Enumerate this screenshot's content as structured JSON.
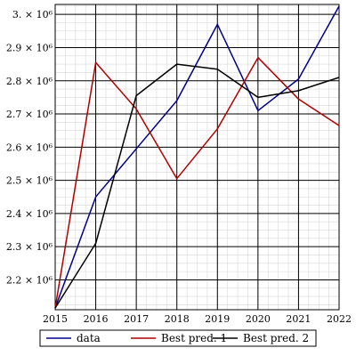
{
  "chart_data": {
    "type": "line",
    "x": [
      2015,
      2016,
      2017,
      2018,
      2019,
      2020,
      2021,
      2022
    ],
    "xlim": [
      2015,
      2022
    ],
    "ylim": [
      2110000,
      3030000
    ],
    "y_ticks": [
      2200000,
      2300000,
      2400000,
      2500000,
      2600000,
      2700000,
      2800000,
      2900000,
      3000000
    ],
    "y_tick_labels": [
      "2.2 × 10⁶",
      "2.3 × 10⁶",
      "2.4 × 10⁶",
      "2.5 × 10⁶",
      "2.6 × 10⁶",
      "2.7 × 10⁶",
      "2.8 × 10⁶",
      "2.9 × 10⁶",
      "3. × 10⁶"
    ],
    "x_tick_labels": [
      "2015",
      "2016",
      "2017",
      "2018",
      "2019",
      "2020",
      "2021",
      "2022"
    ],
    "grid": true,
    "legend_position": "bottom",
    "series": [
      {
        "name": "data",
        "color": "#00008B",
        "values": [
          2115000,
          2450000,
          2595000,
          2740000,
          2970000,
          2710000,
          2805000,
          3025000
        ]
      },
      {
        "name": "Best pred. 1",
        "color": "#B00000",
        "values": [
          2115000,
          2855000,
          2715000,
          2505000,
          2655000,
          2870000,
          2745000,
          2665000
        ]
      },
      {
        "name": "Best pred. 2",
        "color": "#000000",
        "values": [
          2115000,
          2310000,
          2755000,
          2850000,
          2835000,
          2750000,
          2770000,
          2810000
        ]
      }
    ]
  }
}
